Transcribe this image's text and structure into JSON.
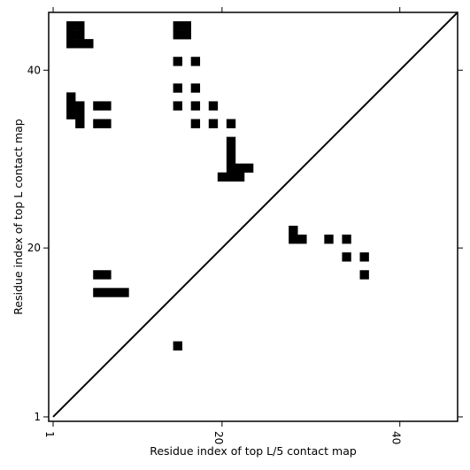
{
  "chart_data": {
    "type": "heatmap",
    "xlabel": "Residue index of top L/5 contact map",
    "ylabel": "Residue index of top L contact map",
    "x_ticks": [
      {
        "value": 1,
        "label": "1"
      },
      {
        "value": 20,
        "label": "20"
      },
      {
        "value": 40,
        "label": "40"
      }
    ],
    "y_ticks": [
      {
        "value": 1,
        "label": "1"
      },
      {
        "value": 20,
        "label": "20"
      },
      {
        "value": 40,
        "label": "40"
      }
    ],
    "xlim": [
      0.5,
      46.5
    ],
    "ylim": [
      0.5,
      46.5
    ],
    "diagonal": true,
    "cell_color": "#000000",
    "upper_left_contacts": [
      [
        3,
        45
      ],
      [
        4,
        45
      ],
      [
        3,
        44
      ],
      [
        4,
        44
      ],
      [
        3,
        43
      ],
      [
        4,
        43
      ],
      [
        5,
        43
      ],
      [
        3,
        37
      ],
      [
        3,
        36
      ],
      [
        4,
        36
      ],
      [
        3,
        35
      ],
      [
        4,
        35
      ],
      [
        4,
        34
      ],
      [
        6,
        36
      ],
      [
        7,
        36
      ],
      [
        6,
        34
      ],
      [
        7,
        34
      ],
      [
        15,
        45
      ],
      [
        16,
        45
      ],
      [
        15,
        44
      ],
      [
        16,
        44
      ],
      [
        15,
        41
      ],
      [
        17,
        41
      ],
      [
        15,
        38
      ],
      [
        17,
        38
      ],
      [
        15,
        36
      ],
      [
        17,
        36
      ],
      [
        19,
        36
      ],
      [
        17,
        34
      ],
      [
        19,
        34
      ],
      [
        21,
        34
      ],
      [
        21,
        32
      ],
      [
        21,
        31
      ],
      [
        21,
        30
      ],
      [
        21,
        29
      ],
      [
        22,
        29
      ],
      [
        23,
        29
      ],
      [
        20,
        28
      ],
      [
        21,
        28
      ],
      [
        22,
        28
      ]
    ],
    "lower_right_contacts": [
      [
        28,
        22
      ],
      [
        28,
        21
      ],
      [
        29,
        21
      ],
      [
        32,
        21
      ],
      [
        34,
        21
      ],
      [
        34,
        19
      ],
      [
        36,
        19
      ],
      [
        36,
        17
      ],
      [
        6,
        17
      ],
      [
        7,
        17
      ],
      [
        6,
        15
      ],
      [
        7,
        15
      ],
      [
        8,
        15
      ],
      [
        9,
        15
      ],
      [
        15,
        9
      ]
    ]
  }
}
